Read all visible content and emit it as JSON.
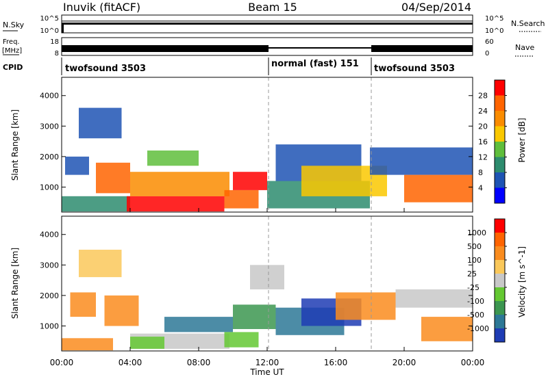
{
  "header": {
    "station": "Inuvik (fitACF)",
    "beam": "Beam 15",
    "date": "04/Sep/2014"
  },
  "status_panels": {
    "nsky_label": "N.Sky",
    "nsky_ticks": [
      "10^5",
      "10^0"
    ],
    "nsearch_label": "N.Search",
    "nsearch_ticks": [
      "10^5",
      "10^0"
    ],
    "freq_label": "Freq.",
    "freq_unit": "[MHz]",
    "freq_ticks": [
      "18",
      "8"
    ],
    "nave_label": "Nave",
    "nave_ticks": [
      "60",
      "0"
    ],
    "cpid_label": "CPID",
    "cpid_segments": [
      {
        "label": "twofsound 3503",
        "start_hour": 0
      },
      {
        "label": "normal (fast) 151",
        "start_hour": 12
      },
      {
        "label": "twofsound 3503",
        "start_hour": 18
      }
    ]
  },
  "chart_data": [
    {
      "type": "heatmap",
      "title": "",
      "xlabel": "",
      "ylabel": "Slant Range [km]",
      "xlim": [
        0,
        24
      ],
      "ylim": [
        180,
        4600
      ],
      "y_ticks": [
        1000,
        2000,
        3000,
        4000
      ],
      "colorbar": {
        "label": "Power [dB]",
        "ticks": [
          "4",
          "8",
          "12",
          "16",
          "20",
          "24",
          "28"
        ],
        "colors": [
          "#0000ff",
          "#1e54b4",
          "#2d8c6e",
          "#5fbe3c",
          "#fac800",
          "#fa8c00",
          "#ff6400",
          "#ff0000"
        ]
      },
      "echo_regions": [
        {
          "t0": 0.0,
          "t1": 4.0,
          "r0": 200,
          "r1": 700,
          "color": "#2d8c6e"
        },
        {
          "t0": 0.2,
          "t1": 1.6,
          "r0": 1400,
          "r1": 2000,
          "color": "#1e54b4"
        },
        {
          "t0": 1.0,
          "t1": 3.5,
          "r0": 2600,
          "r1": 3600,
          "color": "#1e54b4"
        },
        {
          "t0": 2.0,
          "t1": 4.0,
          "r0": 800,
          "r1": 1800,
          "color": "#ff6400"
        },
        {
          "t0": 3.8,
          "t1": 9.5,
          "r0": 200,
          "r1": 700,
          "color": "#ff0000"
        },
        {
          "t0": 4.0,
          "t1": 9.8,
          "r0": 700,
          "r1": 1500,
          "color": "#fa8c00"
        },
        {
          "t0": 5.0,
          "t1": 8.0,
          "r0": 1700,
          "r1": 2200,
          "color": "#5fbe3c"
        },
        {
          "t0": 9.5,
          "t1": 11.5,
          "r0": 300,
          "r1": 900,
          "color": "#ff6400"
        },
        {
          "t0": 10.0,
          "t1": 12.0,
          "r0": 900,
          "r1": 1500,
          "color": "#ff0000"
        },
        {
          "t0": 12.0,
          "t1": 18.0,
          "r0": 300,
          "r1": 1200,
          "color": "#2d8c6e"
        },
        {
          "t0": 12.5,
          "t1": 17.5,
          "r0": 1200,
          "r1": 2400,
          "color": "#1e54b4"
        },
        {
          "t0": 14.0,
          "t1": 19.0,
          "r0": 700,
          "r1": 1700,
          "color": "#fac800"
        },
        {
          "t0": 18.0,
          "t1": 24.0,
          "r0": 1400,
          "r1": 2300,
          "color": "#1e54b4"
        },
        {
          "t0": 20.0,
          "t1": 24.0,
          "r0": 500,
          "r1": 1400,
          "color": "#ff6400"
        }
      ]
    },
    {
      "type": "heatmap",
      "title": "",
      "xlabel": "Time UT",
      "ylabel": "Slant Range [km]",
      "xlim": [
        0,
        24
      ],
      "ylim": [
        180,
        4600
      ],
      "x_ticks": [
        "00:00",
        "04:00",
        "08:00",
        "12:00",
        "16:00",
        "20:00",
        "00:00"
      ],
      "y_ticks": [
        1000,
        2000,
        3000,
        4000
      ],
      "colorbar": {
        "label": "Velocity [m s^-1]",
        "ticks": [
          "1000",
          "500",
          "100",
          "25",
          "-25",
          "-100",
          "-500",
          "-1000"
        ],
        "colors": [
          "#1e3cb4",
          "#2d7896",
          "#3c9650",
          "#64c832",
          "#c8c8c8",
          "#fac85a",
          "#fa8c1e",
          "#ff6400",
          "#ff0000"
        ]
      },
      "echo_regions": [
        {
          "t0": 0.0,
          "t1": 3.0,
          "r0": 200,
          "r1": 600,
          "color": "#fa8c1e"
        },
        {
          "t0": 0.5,
          "t1": 2.0,
          "r0": 1300,
          "r1": 2100,
          "color": "#fa8c1e"
        },
        {
          "t0": 1.0,
          "t1": 3.5,
          "r0": 2600,
          "r1": 3500,
          "color": "#fac85a"
        },
        {
          "t0": 2.5,
          "t1": 4.5,
          "r0": 1000,
          "r1": 2000,
          "color": "#fa8c1e"
        },
        {
          "t0": 4.0,
          "t1": 9.8,
          "r0": 250,
          "r1": 750,
          "color": "#c8c8c8"
        },
        {
          "t0": 4.0,
          "t1": 6.0,
          "r0": 250,
          "r1": 650,
          "color": "#64c832"
        },
        {
          "t0": 6.0,
          "t1": 10.0,
          "r0": 800,
          "r1": 1300,
          "color": "#2d7896"
        },
        {
          "t0": 9.5,
          "t1": 11.5,
          "r0": 300,
          "r1": 800,
          "color": "#64c832"
        },
        {
          "t0": 10.0,
          "t1": 12.5,
          "r0": 900,
          "r1": 1700,
          "color": "#3c9650"
        },
        {
          "t0": 11.0,
          "t1": 13.0,
          "r0": 2200,
          "r1": 3000,
          "color": "#c8c8c8"
        },
        {
          "t0": 12.5,
          "t1": 16.5,
          "r0": 700,
          "r1": 1600,
          "color": "#2d7896"
        },
        {
          "t0": 14.0,
          "t1": 17.5,
          "r0": 1000,
          "r1": 1900,
          "color": "#1e3cb4"
        },
        {
          "t0": 16.0,
          "t1": 19.5,
          "r0": 1200,
          "r1": 2100,
          "color": "#fa8c1e"
        },
        {
          "t0": 19.5,
          "t1": 24.0,
          "r0": 1600,
          "r1": 2200,
          "color": "#c8c8c8"
        },
        {
          "t0": 21.0,
          "t1": 24.0,
          "r0": 500,
          "r1": 1300,
          "color": "#fa8c1e"
        }
      ]
    }
  ]
}
